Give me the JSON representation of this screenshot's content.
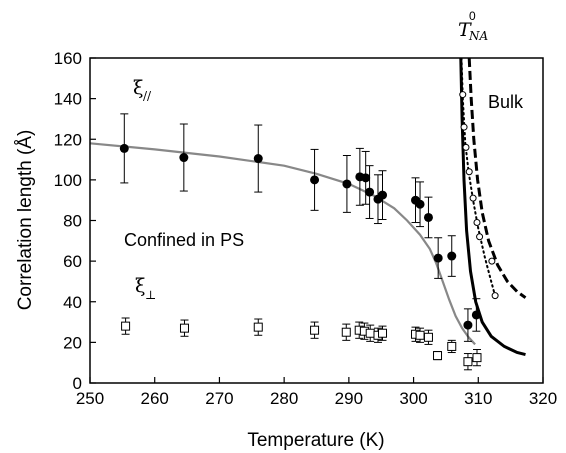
{
  "chart_data": {
    "type": "scatter",
    "xlabel": "Temperature (K)",
    "ylabel": "Correlation length (Å)",
    "xlim": [
      250,
      320
    ],
    "ylim": [
      0,
      160
    ],
    "x_ticks": [
      250,
      260,
      270,
      280,
      290,
      300,
      310,
      320
    ],
    "y_ticks": [
      0,
      20,
      40,
      60,
      80,
      100,
      120,
      140,
      160
    ],
    "grid": false,
    "annotations": {
      "confined": "Confined in PS",
      "bulk": "Bulk",
      "xi_par": "ξ",
      "xi_par_sub": "//",
      "xi_perp": "ξ",
      "xi_perp_sub": "⊥",
      "tna": "T",
      "tna_sup": "0",
      "tna_sub": "NA"
    },
    "xi_parallel": [
      {
        "x": 255.3,
        "y": 115.5,
        "err": 17
      },
      {
        "x": 264.5,
        "y": 111,
        "err": 16.5
      },
      {
        "x": 276.0,
        "y": 110.5,
        "err": 16.5
      },
      {
        "x": 284.7,
        "y": 100,
        "err": 15
      },
      {
        "x": 289.7,
        "y": 98,
        "err": 14
      },
      {
        "x": 291.7,
        "y": 101.5,
        "err": 14
      },
      {
        "x": 292.6,
        "y": 101,
        "err": 13
      },
      {
        "x": 293.2,
        "y": 94,
        "err": 13
      },
      {
        "x": 294.5,
        "y": 90.5,
        "err": 12
      },
      {
        "x": 295.2,
        "y": 92.5,
        "err": 12
      },
      {
        "x": 300.3,
        "y": 90,
        "err": 11
      },
      {
        "x": 301.0,
        "y": 88,
        "err": 11
      },
      {
        "x": 302.3,
        "y": 81.5,
        "err": 10
      },
      {
        "x": 303.8,
        "y": 61.5,
        "err": 10
      },
      {
        "x": 305.9,
        "y": 62.5,
        "err": 10
      },
      {
        "x": 308.4,
        "y": 28.5,
        "err": 8
      },
      {
        "x": 309.7,
        "y": 33.5,
        "err": 8
      }
    ],
    "xi_perpendicular": [
      {
        "x": 255.5,
        "y": 28,
        "err": 4
      },
      {
        "x": 264.6,
        "y": 27,
        "err": 4
      },
      {
        "x": 276.0,
        "y": 27.5,
        "err": 4
      },
      {
        "x": 284.7,
        "y": 26,
        "err": 4
      },
      {
        "x": 289.6,
        "y": 25,
        "err": 4
      },
      {
        "x": 291.6,
        "y": 26,
        "err": 4
      },
      {
        "x": 292.4,
        "y": 25.5,
        "err": 4
      },
      {
        "x": 293.3,
        "y": 24.5,
        "err": 4
      },
      {
        "x": 294.5,
        "y": 23.5,
        "err": 3.5
      },
      {
        "x": 295.2,
        "y": 24.5,
        "err": 3.5
      },
      {
        "x": 300.3,
        "y": 24,
        "err": 3.5
      },
      {
        "x": 301.0,
        "y": 23.5,
        "err": 3.5
      },
      {
        "x": 302.3,
        "y": 22.5,
        "err": 3.5
      },
      {
        "x": 303.7,
        "y": 13.5,
        "err": 2
      },
      {
        "x": 305.9,
        "y": 18,
        "err": 3
      },
      {
        "x": 308.4,
        "y": 10.5,
        "err": 4
      },
      {
        "x": 309.8,
        "y": 12.5,
        "err": 4
      }
    ],
    "bulk_open_circles": [
      {
        "x": 307.6,
        "y": 142
      },
      {
        "x": 307.8,
        "y": 126
      },
      {
        "x": 308.1,
        "y": 116
      },
      {
        "x": 308.6,
        "y": 104
      },
      {
        "x": 309.2,
        "y": 91
      },
      {
        "x": 309.8,
        "y": 79
      },
      {
        "x": 310.2,
        "y": 72
      },
      {
        "x": 312.1,
        "y": 60
      },
      {
        "x": 312.6,
        "y": 43
      }
    ],
    "fit_confined": [
      {
        "x": 250,
        "y": 118
      },
      {
        "x": 260,
        "y": 115
      },
      {
        "x": 270,
        "y": 111.5
      },
      {
        "x": 280,
        "y": 107
      },
      {
        "x": 285,
        "y": 103
      },
      {
        "x": 290,
        "y": 98
      },
      {
        "x": 294,
        "y": 92
      },
      {
        "x": 297,
        "y": 86
      },
      {
        "x": 299,
        "y": 80
      },
      {
        "x": 301,
        "y": 73
      },
      {
        "x": 302.5,
        "y": 66
      },
      {
        "x": 303.5,
        "y": 59
      },
      {
        "x": 304.5,
        "y": 50
      },
      {
        "x": 305.5,
        "y": 41
      },
      {
        "x": 306.5,
        "y": 33
      },
      {
        "x": 307.5,
        "y": 27
      },
      {
        "x": 308.5,
        "y": 22.5
      },
      {
        "x": 309.5,
        "y": 19
      }
    ],
    "bulk_solid": [
      {
        "x": 307.3,
        "y": 160
      },
      {
        "x": 307.5,
        "y": 130
      },
      {
        "x": 307.8,
        "y": 100
      },
      {
        "x": 308.2,
        "y": 75
      },
      {
        "x": 308.8,
        "y": 55
      },
      {
        "x": 309.6,
        "y": 40
      },
      {
        "x": 310.6,
        "y": 30
      },
      {
        "x": 312,
        "y": 23
      },
      {
        "x": 314,
        "y": 18
      },
      {
        "x": 316,
        "y": 15
      },
      {
        "x": 317.3,
        "y": 14
      }
    ],
    "bulk_dotted": [
      {
        "x": 307.4,
        "y": 160
      },
      {
        "x": 307.6,
        "y": 140
      },
      {
        "x": 308.0,
        "y": 118
      },
      {
        "x": 308.5,
        "y": 104
      },
      {
        "x": 309.2,
        "y": 90
      },
      {
        "x": 310.0,
        "y": 76
      },
      {
        "x": 311.0,
        "y": 62
      },
      {
        "x": 312.0,
        "y": 50
      },
      {
        "x": 312.6,
        "y": 43
      }
    ],
    "bulk_dashed": [
      {
        "x": 308.6,
        "y": 160
      },
      {
        "x": 308.9,
        "y": 140
      },
      {
        "x": 309.3,
        "y": 120
      },
      {
        "x": 309.9,
        "y": 100
      },
      {
        "x": 310.6,
        "y": 84
      },
      {
        "x": 311.6,
        "y": 70
      },
      {
        "x": 313,
        "y": 58
      },
      {
        "x": 314.5,
        "y": 50
      },
      {
        "x": 316,
        "y": 45
      },
      {
        "x": 317.3,
        "y": 42
      }
    ]
  }
}
